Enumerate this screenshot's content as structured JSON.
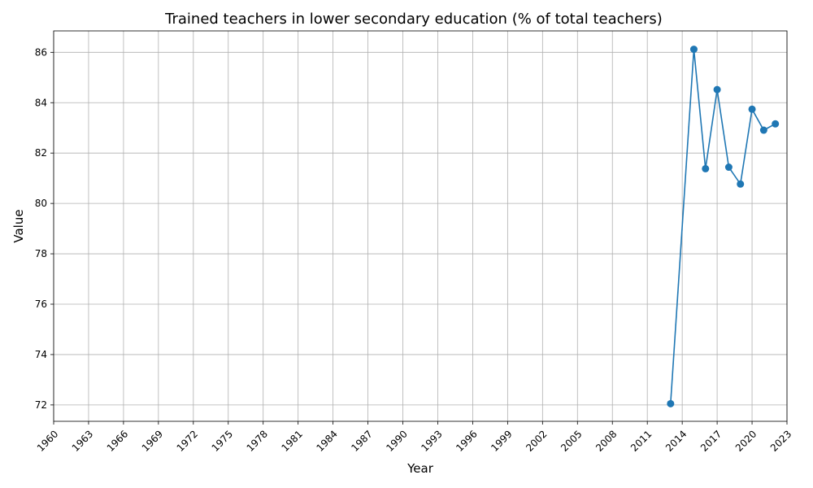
{
  "chart_data": {
    "type": "line",
    "title": "Trained teachers in lower secondary education (% of total teachers)",
    "xlabel": "Year",
    "ylabel": "Value",
    "xlim": [
      1960,
      2023
    ],
    "ylim": [
      71.35,
      86.85
    ],
    "x_ticks": [
      1960,
      1963,
      1966,
      1969,
      1972,
      1975,
      1978,
      1981,
      1984,
      1987,
      1990,
      1993,
      1996,
      1999,
      2002,
      2005,
      2008,
      2011,
      2014,
      2017,
      2020,
      2023
    ],
    "y_ticks": [
      72,
      74,
      76,
      78,
      80,
      82,
      84,
      86
    ],
    "grid": true,
    "series": [
      {
        "color": "#1f77b4",
        "marker": "circle",
        "x": [
          2013,
          2015,
          2016,
          2017,
          2018,
          2019,
          2020,
          2021,
          2022
        ],
        "y": [
          72.05,
          86.12,
          81.38,
          84.52,
          81.44,
          80.77,
          83.74,
          82.91,
          83.16
        ],
        "connected": [
          false,
          true,
          true,
          true,
          true,
          true,
          true,
          true,
          true
        ]
      }
    ]
  }
}
